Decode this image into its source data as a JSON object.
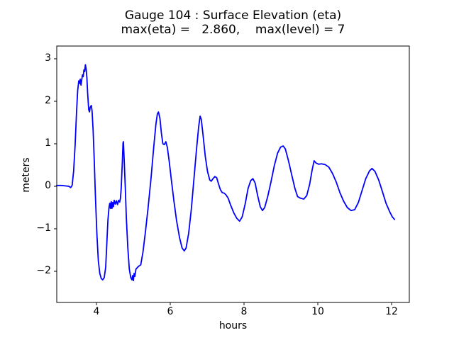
{
  "chart_data": {
    "type": "line",
    "title": "Gauge 104 : Surface Elevation (eta)",
    "subtitle": "max(eta) =   2.860,    max(level) = 7",
    "xlabel": "hours",
    "ylabel": "meters",
    "xlim": [
      2.923,
      12.481
    ],
    "ylim": [
      -2.733,
      3.3
    ],
    "grid": false,
    "legend": "none",
    "line_color": "#0000ff",
    "frame_color": "#000000",
    "background_color": "#ffffff",
    "x_ticks": [
      {
        "value": 4,
        "label": "4"
      },
      {
        "value": 6,
        "label": "6"
      },
      {
        "value": 8,
        "label": "8"
      },
      {
        "value": 10,
        "label": "10"
      },
      {
        "value": 12,
        "label": "12"
      }
    ],
    "y_ticks": [
      {
        "value": 3,
        "label": "3"
      },
      {
        "value": 2,
        "label": "2"
      },
      {
        "value": 1,
        "label": "1"
      },
      {
        "value": 0,
        "label": "0"
      },
      {
        "value": -1,
        "label": "−1"
      },
      {
        "value": -2,
        "label": "−2"
      }
    ],
    "max_eta": 2.86,
    "max_level": 7,
    "series": [
      {
        "name": "surface-elevation-eta",
        "points": [
          [
            2.92,
            0.02
          ],
          [
            3.05,
            0.02
          ],
          [
            3.15,
            0.01
          ],
          [
            3.25,
            0.0
          ],
          [
            3.3,
            -0.03
          ],
          [
            3.34,
            0.02
          ],
          [
            3.38,
            0.35
          ],
          [
            3.42,
            0.95
          ],
          [
            3.46,
            1.75
          ],
          [
            3.49,
            2.25
          ],
          [
            3.52,
            2.48
          ],
          [
            3.54,
            2.42
          ],
          [
            3.56,
            2.52
          ],
          [
            3.58,
            2.38
          ],
          [
            3.6,
            2.5
          ],
          [
            3.62,
            2.62
          ],
          [
            3.64,
            2.58
          ],
          [
            3.66,
            2.74
          ],
          [
            3.68,
            2.7
          ],
          [
            3.7,
            2.86
          ],
          [
            3.72,
            2.76
          ],
          [
            3.74,
            2.55
          ],
          [
            3.76,
            2.2
          ],
          [
            3.79,
            1.8
          ],
          [
            3.81,
            1.75
          ],
          [
            3.83,
            1.86
          ],
          [
            3.86,
            1.9
          ],
          [
            3.88,
            1.78
          ],
          [
            3.91,
            1.3
          ],
          [
            3.94,
            0.6
          ],
          [
            3.97,
            -0.2
          ],
          [
            4.01,
            -1.1
          ],
          [
            4.05,
            -1.75
          ],
          [
            4.09,
            -2.05
          ],
          [
            4.13,
            -2.17
          ],
          [
            4.17,
            -2.2
          ],
          [
            4.21,
            -2.15
          ],
          [
            4.25,
            -1.9
          ],
          [
            4.28,
            -1.35
          ],
          [
            4.31,
            -0.8
          ],
          [
            4.34,
            -0.5
          ],
          [
            4.36,
            -0.4
          ],
          [
            4.38,
            -0.52
          ],
          [
            4.4,
            -0.36
          ],
          [
            4.42,
            -0.52
          ],
          [
            4.44,
            -0.38
          ],
          [
            4.46,
            -0.48
          ],
          [
            4.48,
            -0.33
          ],
          [
            4.51,
            -0.42
          ],
          [
            4.54,
            -0.34
          ],
          [
            4.57,
            -0.43
          ],
          [
            4.6,
            -0.33
          ],
          [
            4.63,
            -0.37
          ],
          [
            4.65,
            -0.28
          ],
          [
            4.67,
            -0.05
          ],
          [
            4.7,
            0.55
          ],
          [
            4.72,
            1.02
          ],
          [
            4.73,
            1.05
          ],
          [
            4.75,
            0.65
          ],
          [
            4.78,
            0.0
          ],
          [
            4.81,
            -0.75
          ],
          [
            4.85,
            -1.45
          ],
          [
            4.89,
            -1.95
          ],
          [
            4.93,
            -2.15
          ],
          [
            4.96,
            -2.2
          ],
          [
            4.98,
            -2.1
          ],
          [
            5.0,
            -2.22
          ],
          [
            5.02,
            -2.05
          ],
          [
            5.04,
            -2.12
          ],
          [
            5.07,
            -1.95
          ],
          [
            5.12,
            -1.9
          ],
          [
            5.16,
            -1.87
          ],
          [
            5.2,
            -1.85
          ],
          [
            5.26,
            -1.55
          ],
          [
            5.33,
            -1.05
          ],
          [
            5.4,
            -0.5
          ],
          [
            5.48,
            0.2
          ],
          [
            5.55,
            0.9
          ],
          [
            5.61,
            1.45
          ],
          [
            5.65,
            1.7
          ],
          [
            5.68,
            1.75
          ],
          [
            5.72,
            1.6
          ],
          [
            5.76,
            1.25
          ],
          [
            5.8,
            1.0
          ],
          [
            5.84,
            0.98
          ],
          [
            5.88,
            1.05
          ],
          [
            5.92,
            0.92
          ],
          [
            5.97,
            0.6
          ],
          [
            6.03,
            0.15
          ],
          [
            6.1,
            -0.35
          ],
          [
            6.17,
            -0.8
          ],
          [
            6.25,
            -1.2
          ],
          [
            6.32,
            -1.45
          ],
          [
            6.38,
            -1.52
          ],
          [
            6.43,
            -1.45
          ],
          [
            6.5,
            -1.1
          ],
          [
            6.57,
            -0.55
          ],
          [
            6.64,
            0.15
          ],
          [
            6.71,
            0.85
          ],
          [
            6.77,
            1.4
          ],
          [
            6.81,
            1.65
          ],
          [
            6.84,
            1.58
          ],
          [
            6.89,
            1.2
          ],
          [
            6.95,
            0.7
          ],
          [
            7.01,
            0.35
          ],
          [
            7.07,
            0.15
          ],
          [
            7.11,
            0.12
          ],
          [
            7.16,
            0.18
          ],
          [
            7.21,
            0.23
          ],
          [
            7.26,
            0.2
          ],
          [
            7.31,
            0.05
          ],
          [
            7.36,
            -0.08
          ],
          [
            7.41,
            -0.15
          ],
          [
            7.46,
            -0.16
          ],
          [
            7.51,
            -0.2
          ],
          [
            7.57,
            -0.28
          ],
          [
            7.64,
            -0.45
          ],
          [
            7.72,
            -0.62
          ],
          [
            7.8,
            -0.75
          ],
          [
            7.88,
            -0.82
          ],
          [
            7.95,
            -0.72
          ],
          [
            8.03,
            -0.42
          ],
          [
            8.11,
            -0.05
          ],
          [
            8.18,
            0.13
          ],
          [
            8.24,
            0.18
          ],
          [
            8.3,
            0.08
          ],
          [
            8.37,
            -0.22
          ],
          [
            8.44,
            -0.48
          ],
          [
            8.5,
            -0.57
          ],
          [
            8.56,
            -0.5
          ],
          [
            8.64,
            -0.25
          ],
          [
            8.73,
            0.1
          ],
          [
            8.82,
            0.48
          ],
          [
            8.91,
            0.78
          ],
          [
            8.99,
            0.92
          ],
          [
            9.06,
            0.95
          ],
          [
            9.12,
            0.88
          ],
          [
            9.2,
            0.62
          ],
          [
            9.29,
            0.28
          ],
          [
            9.38,
            -0.05
          ],
          [
            9.45,
            -0.24
          ],
          [
            9.53,
            -0.28
          ],
          [
            9.62,
            -0.3
          ],
          [
            9.7,
            -0.22
          ],
          [
            9.78,
            0.05
          ],
          [
            9.85,
            0.4
          ],
          [
            9.9,
            0.6
          ],
          [
            9.95,
            0.55
          ],
          [
            10.02,
            0.52
          ],
          [
            10.1,
            0.53
          ],
          [
            10.2,
            0.51
          ],
          [
            10.3,
            0.45
          ],
          [
            10.4,
            0.3
          ],
          [
            10.5,
            0.1
          ],
          [
            10.6,
            -0.15
          ],
          [
            10.7,
            -0.35
          ],
          [
            10.8,
            -0.5
          ],
          [
            10.9,
            -0.57
          ],
          [
            11.0,
            -0.55
          ],
          [
            11.1,
            -0.38
          ],
          [
            11.2,
            -0.1
          ],
          [
            11.3,
            0.18
          ],
          [
            11.4,
            0.36
          ],
          [
            11.47,
            0.42
          ],
          [
            11.55,
            0.35
          ],
          [
            11.65,
            0.15
          ],
          [
            11.75,
            -0.12
          ],
          [
            11.85,
            -0.4
          ],
          [
            11.95,
            -0.6
          ],
          [
            12.02,
            -0.72
          ],
          [
            12.08,
            -0.78
          ]
        ]
      }
    ]
  }
}
